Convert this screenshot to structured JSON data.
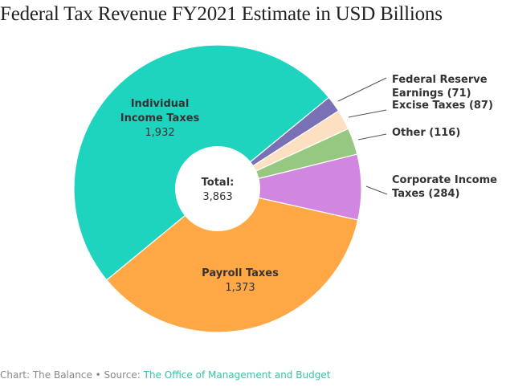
{
  "title": "Federal Tax Revenue FY2021 Estimate in USD Billions",
  "footer": {
    "credit": "Chart: The Balance",
    "separator": " • ",
    "source_prefix": "Source: ",
    "source_link": "The Office of Management and Budget"
  },
  "chart_data": {
    "type": "pie",
    "style": "donut",
    "title": "Federal Tax Revenue FY2021 Estimate in USD Billions",
    "unit": "USD Billions",
    "center_label": "Total:",
    "center_value": "3,863",
    "total": 3863,
    "start_angle_deg": 50.6,
    "direction": "clockwise",
    "slices": [
      {
        "name": "Federal Reserve Earnings",
        "value": 71,
        "color": "#7970b5",
        "label_lines": [
          "Federal Reserve",
          "Earnings (71)"
        ],
        "label_position": "outside-right"
      },
      {
        "name": "Excise Taxes",
        "value": 87,
        "color": "#fde0c2",
        "label_lines": [
          "Excise Taxes (87)"
        ],
        "label_position": "outside-right"
      },
      {
        "name": "Other",
        "value": 116,
        "color": "#96c882",
        "label_lines": [
          "Other (116)"
        ],
        "label_position": "outside-right"
      },
      {
        "name": "Corporate Income Taxes",
        "value": 284,
        "color": "#d187e0",
        "label_lines": [
          "Corporate Income",
          "Taxes (284)"
        ],
        "label_position": "outside-right"
      },
      {
        "name": "Payroll Taxes",
        "value": 1373,
        "color": "#ffa845",
        "label_lines": [
          "Payroll Taxes"
        ],
        "value_label": "1,373",
        "label_position": "inside"
      },
      {
        "name": "Individual Income Taxes",
        "value": 1932,
        "color": "#1fd4be",
        "label_lines": [
          "Individual",
          "Income Taxes"
        ],
        "value_label": "1,932",
        "label_position": "inside"
      }
    ]
  }
}
